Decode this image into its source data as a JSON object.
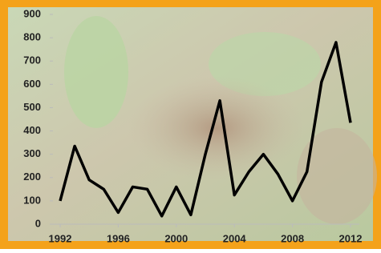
{
  "chart_data": {
    "type": "line",
    "x": [
      1992,
      1993,
      1994,
      1995,
      1996,
      1997,
      1998,
      1999,
      2000,
      2001,
      2002,
      2003,
      2004,
      2005,
      2006,
      2007,
      2008,
      2009,
      2010,
      2011,
      2012
    ],
    "values": [
      100,
      335,
      190,
      150,
      50,
      160,
      150,
      35,
      160,
      40,
      300,
      530,
      125,
      225,
      300,
      215,
      100,
      225,
      610,
      780,
      435
    ],
    "color": "#000000",
    "xlim": [
      1992,
      2012
    ],
    "xticks": [
      1992,
      1996,
      2000,
      2004,
      2008,
      2012
    ],
    "ylim": [
      0,
      900
    ],
    "yticks": [
      0,
      100,
      200,
      300,
      400,
      500,
      600,
      700,
      800,
      900
    ]
  }
}
